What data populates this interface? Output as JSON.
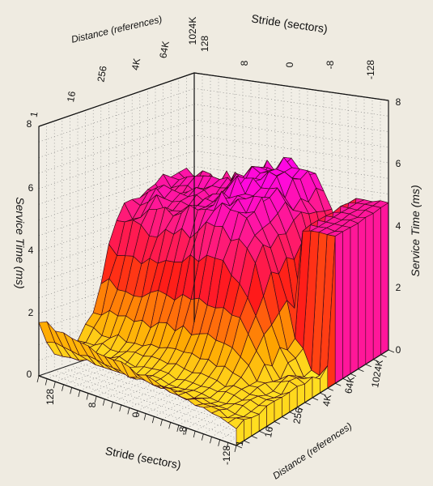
{
  "chart_data": {
    "type": "surface",
    "zlabel": "Service Time (ms)",
    "xlabel": "Stride (sectors)",
    "ylabel": "Distance (references)",
    "zlim": [
      0,
      8
    ],
    "z_ticks": [
      "0",
      "2",
      "4",
      "6",
      "8"
    ],
    "stride_ticks": [
      "128",
      "8",
      "0",
      "-8",
      "-128"
    ],
    "distance_ticks": [
      "1",
      "16",
      "256",
      "4K",
      "64K",
      "1024K"
    ],
    "grid": true,
    "colorscale": [
      "#ffff33",
      "#ffa600",
      "#ff1a1a",
      "#ff1a8a",
      "#ff00ff"
    ],
    "description_levels": {
      "plateau_ms": 4.8,
      "peak_ms": 5.6,
      "floor_ms": 0.6,
      "low_distance_edge_ms": 1.2
    }
  }
}
